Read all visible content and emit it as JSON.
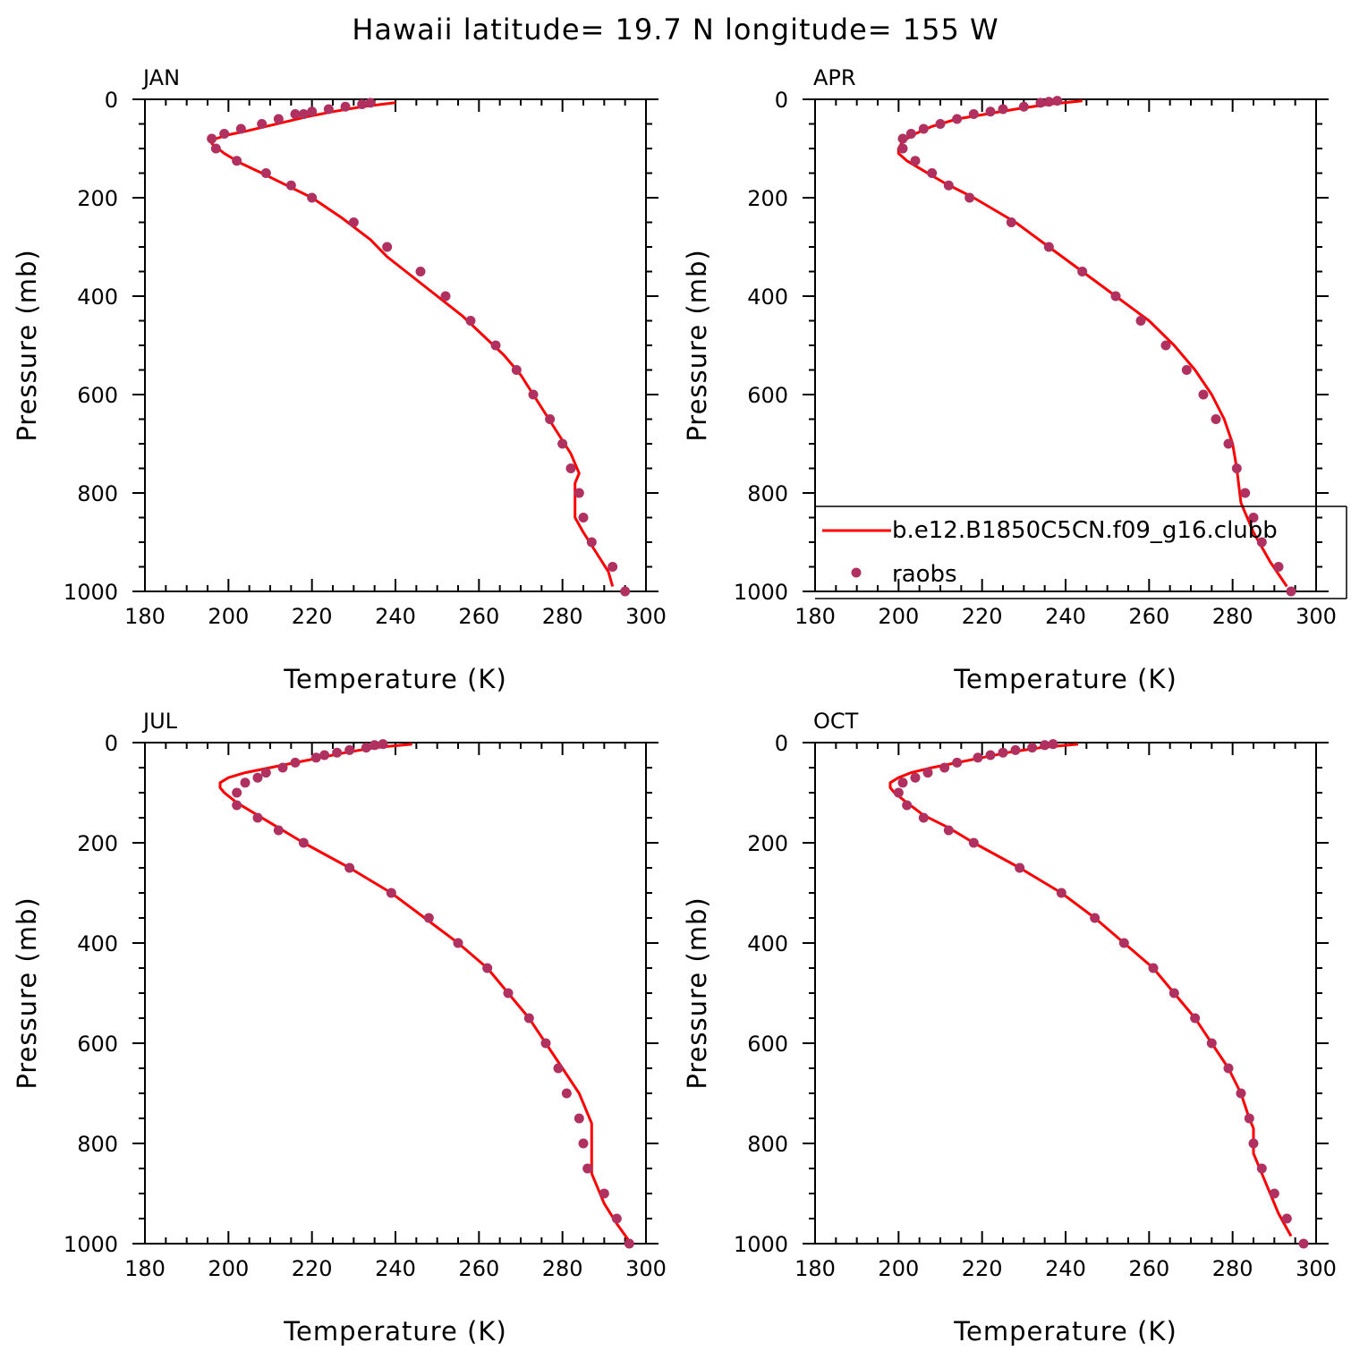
{
  "title": "Hawaii  latitude= 19.7 N longitude= 155 W",
  "chart_data": [
    {
      "type": "line",
      "panel": "JAN",
      "xlabel": "Temperature (K)",
      "ylabel": "Pressure (mb)",
      "xlim": [
        180,
        300
      ],
      "ylim": [
        0,
        1000
      ],
      "y_inverted": true,
      "x_ticks": [
        "180",
        "200",
        "220",
        "240",
        "260",
        "280",
        "300"
      ],
      "y_ticks": [
        "0",
        "200",
        "400",
        "600",
        "800",
        "1000"
      ],
      "series": [
        {
          "name": "b.e12.B1850C5CN.f09_g16.clubb",
          "kind": "line",
          "color": "#ff0000",
          "x": [
            240,
            232,
            225,
            219,
            214,
            209,
            204,
            200,
            197,
            196,
            196,
            199,
            203,
            208,
            214,
            220,
            227,
            234,
            238,
            244,
            250,
            256,
            261,
            266,
            270,
            273,
            276,
            279,
            282,
            284,
            283,
            283,
            285,
            288,
            291,
            292
          ],
          "y": [
            7,
            15,
            25,
            35,
            45,
            55,
            65,
            72,
            80,
            85,
            90,
            110,
            130,
            150,
            175,
            200,
            240,
            285,
            320,
            360,
            400,
            440,
            480,
            520,
            560,
            600,
            640,
            680,
            720,
            760,
            780,
            850,
            880,
            920,
            960,
            990
          ]
        },
        {
          "name": "raobs",
          "kind": "scatter",
          "color": "#b03060",
          "x": [
            234,
            232,
            228,
            224,
            220,
            218,
            216,
            212,
            208,
            203,
            199,
            196,
            197,
            202,
            209,
            215,
            220,
            230,
            238,
            246,
            252,
            258,
            264,
            269,
            273,
            277,
            280,
            282,
            284,
            285,
            287,
            292,
            295
          ],
          "y": [
            7,
            10,
            15,
            20,
            25,
            30,
            30,
            40,
            50,
            60,
            70,
            80,
            100,
            125,
            150,
            175,
            200,
            250,
            300,
            350,
            400,
            450,
            500,
            550,
            600,
            650,
            700,
            750,
            800,
            850,
            900,
            950,
            1000
          ]
        }
      ]
    },
    {
      "type": "line",
      "panel": "APR",
      "xlabel": "Temperature (K)",
      "ylabel": "Pressure (mb)",
      "xlim": [
        180,
        300
      ],
      "ylim": [
        0,
        1000
      ],
      "y_inverted": true,
      "x_ticks": [
        "180",
        "200",
        "220",
        "240",
        "260",
        "280",
        "300"
      ],
      "y_ticks": [
        "0",
        "200",
        "400",
        "600",
        "800",
        "1000"
      ],
      "legend": {
        "placement": "bottom-right",
        "entries": [
          "b.e12.B1850C5CN.f09_g16.clubb",
          "raobs"
        ]
      },
      "series": [
        {
          "name": "b.e12.B1850C5CN.f09_g16.clubb",
          "kind": "line",
          "color": "#ff0000",
          "x": [
            244,
            236,
            228,
            221,
            214,
            208,
            204,
            201,
            200,
            200,
            202,
            206,
            211,
            218,
            228,
            236,
            244,
            252,
            260,
            266,
            271,
            275,
            278,
            280,
            281,
            282,
            285,
            289,
            293
          ],
          "y": [
            3,
            10,
            20,
            30,
            40,
            55,
            70,
            85,
            100,
            110,
            125,
            145,
            170,
            200,
            250,
            300,
            350,
            400,
            450,
            500,
            550,
            600,
            650,
            700,
            750,
            820,
            880,
            940,
            990
          ]
        },
        {
          "name": "raobs",
          "kind": "scatter",
          "color": "#b03060",
          "x": [
            238,
            236,
            234,
            230,
            225,
            222,
            218,
            214,
            210,
            206,
            203,
            201,
            201,
            204,
            208,
            212,
            217,
            227,
            236,
            244,
            252,
            258,
            264,
            269,
            273,
            276,
            279,
            281,
            283,
            285,
            287,
            291,
            294
          ],
          "y": [
            3,
            5,
            7,
            15,
            20,
            25,
            30,
            40,
            50,
            60,
            70,
            80,
            100,
            125,
            150,
            175,
            200,
            250,
            300,
            350,
            400,
            450,
            500,
            550,
            600,
            650,
            700,
            750,
            800,
            850,
            900,
            950,
            1000
          ]
        }
      ]
    },
    {
      "type": "line",
      "panel": "JUL",
      "xlabel": "Temperature (K)",
      "ylabel": "Pressure (mb)",
      "xlim": [
        180,
        300
      ],
      "ylim": [
        0,
        1000
      ],
      "y_inverted": true,
      "x_ticks": [
        "180",
        "200",
        "220",
        "240",
        "260",
        "280",
        "300"
      ],
      "y_ticks": [
        "0",
        "200",
        "400",
        "600",
        "800",
        "1000"
      ],
      "series": [
        {
          "name": "b.e12.B1850C5CN.f09_g16.clubb",
          "kind": "line",
          "color": "#ff0000",
          "x": [
            244,
            235,
            228,
            222,
            216,
            210,
            204,
            200,
            198,
            198,
            199,
            202,
            207,
            212,
            218,
            229,
            239,
            247,
            255,
            262,
            267,
            272,
            276,
            280,
            284,
            287,
            287,
            287,
            290,
            293,
            296
          ],
          "y": [
            3,
            10,
            20,
            30,
            40,
            50,
            60,
            70,
            80,
            90,
            100,
            120,
            145,
            170,
            200,
            250,
            300,
            350,
            400,
            450,
            500,
            550,
            600,
            650,
            700,
            760,
            800,
            860,
            920,
            960,
            995
          ]
        },
        {
          "name": "raobs",
          "kind": "scatter",
          "color": "#b03060",
          "x": [
            237,
            235,
            233,
            229,
            226,
            223,
            221,
            216,
            213,
            209,
            207,
            204,
            202,
            202,
            207,
            212,
            218,
            229,
            239,
            248,
            255,
            262,
            267,
            272,
            276,
            279,
            281,
            284,
            285,
            286,
            290,
            293,
            296
          ],
          "y": [
            3,
            5,
            10,
            15,
            20,
            25,
            30,
            40,
            50,
            60,
            70,
            80,
            100,
            125,
            150,
            175,
            200,
            250,
            300,
            350,
            400,
            450,
            500,
            550,
            600,
            650,
            700,
            750,
            800,
            850,
            900,
            950,
            1000
          ]
        }
      ]
    },
    {
      "type": "line",
      "panel": "OCT",
      "xlabel": "Temperature (K)",
      "ylabel": "Pressure (mb)",
      "xlim": [
        180,
        300
      ],
      "ylim": [
        0,
        1000
      ],
      "y_inverted": true,
      "x_ticks": [
        "180",
        "200",
        "220",
        "240",
        "260",
        "280",
        "300"
      ],
      "y_ticks": [
        "0",
        "200",
        "400",
        "600",
        "800",
        "1000"
      ],
      "series": [
        {
          "name": "b.e12.B1850C5CN.f09_g16.clubb",
          "kind": "line",
          "color": "#ff0000",
          "x": [
            243,
            234,
            226,
            220,
            214,
            208,
            203,
            200,
            198,
            198,
            199,
            202,
            206,
            212,
            218,
            229,
            239,
            247,
            254,
            261,
            266,
            271,
            275,
            279,
            282,
            284,
            285,
            285,
            288,
            291,
            294
          ],
          "y": [
            3,
            10,
            20,
            30,
            40,
            50,
            60,
            70,
            80,
            90,
            100,
            120,
            145,
            170,
            200,
            250,
            300,
            350,
            400,
            450,
            500,
            550,
            600,
            650,
            700,
            750,
            770,
            820,
            880,
            940,
            985
          ]
        },
        {
          "name": "raobs",
          "kind": "scatter",
          "color": "#b03060",
          "x": [
            237,
            235,
            232,
            228,
            225,
            222,
            219,
            214,
            211,
            207,
            204,
            201,
            200,
            202,
            206,
            212,
            218,
            229,
            239,
            247,
            254,
            261,
            266,
            271,
            275,
            279,
            282,
            284,
            285,
            287,
            290,
            293,
            297
          ],
          "y": [
            3,
            5,
            10,
            15,
            20,
            25,
            30,
            40,
            50,
            60,
            70,
            80,
            100,
            125,
            150,
            175,
            200,
            250,
            300,
            350,
            400,
            450,
            500,
            550,
            600,
            650,
            700,
            750,
            800,
            850,
            900,
            950,
            1000
          ]
        }
      ]
    }
  ]
}
